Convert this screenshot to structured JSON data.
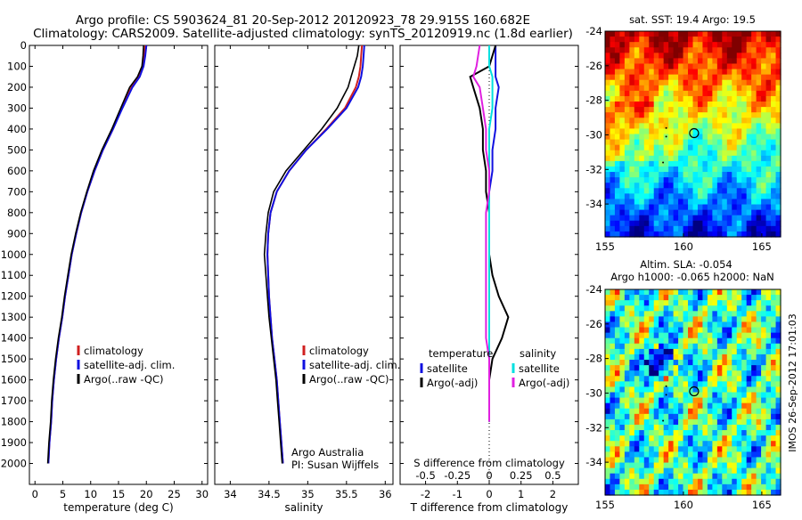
{
  "header": {
    "line1": "Argo profile: CS 5903624_81 20-Sep-2012 20120923_78 29.915S 160.682E",
    "line2": "Climatology: CARS2009. Satellite-adjusted climatology: synTS_20120919.nc (1.8d earlier)"
  },
  "side_stamp": "IMOS 26-Sep-2012 17:01:03",
  "colors": {
    "climatology": "#d02020",
    "satellite": "#1010e0",
    "argo": "#000000",
    "salinity_satellite": "#00e0e0",
    "salinity_argo": "#e020e0"
  },
  "chart_data": [
    {
      "type": "line",
      "xlabel": "temperature (deg C)",
      "ylabel": "",
      "xlim": [
        -1,
        31
      ],
      "xticks": [
        0,
        5,
        10,
        15,
        20,
        25,
        30
      ],
      "ylim": [
        0,
        2100
      ],
      "yticks": [
        0,
        100,
        200,
        300,
        400,
        500,
        600,
        700,
        800,
        900,
        1000,
        1100,
        1200,
        1300,
        1400,
        1500,
        1600,
        1700,
        1800,
        1900,
        2000
      ],
      "legend": [
        "climatology",
        "satellite-adj. clim.",
        "Argo(..raw -QC)"
      ],
      "series": [
        {
          "name": "climatology",
          "color": "#d02020",
          "x": [
            19.8,
            19.6,
            19.3,
            18.6,
            17.3,
            15.6,
            14.0,
            12.2,
            10.7,
            9.4,
            8.3,
            7.4,
            6.6,
            6.0,
            5.4,
            4.9,
            4.3,
            3.8,
            3.4,
            3.1,
            2.9,
            2.6,
            2.4
          ],
          "y": [
            0,
            50,
            100,
            150,
            200,
            300,
            400,
            500,
            600,
            700,
            800,
            900,
            1000,
            1100,
            1200,
            1300,
            1400,
            1500,
            1600,
            1700,
            1800,
            1900,
            2000
          ]
        },
        {
          "name": "satellite-adj. clim.",
          "color": "#1010e0",
          "x": [
            20.0,
            19.8,
            19.5,
            18.8,
            17.5,
            15.7,
            14.0,
            12.2,
            10.7,
            9.4,
            8.3,
            7.4,
            6.6,
            6.0,
            5.4,
            4.9,
            4.3,
            3.8,
            3.4,
            3.1,
            2.9,
            2.6,
            2.4
          ],
          "y": [
            0,
            50,
            100,
            150,
            200,
            300,
            400,
            500,
            600,
            700,
            800,
            900,
            1000,
            1100,
            1200,
            1300,
            1400,
            1500,
            1600,
            1700,
            1800,
            1900,
            2000
          ]
        },
        {
          "name": "Argo(..raw -QC)",
          "color": "#000000",
          "x": [
            19.5,
            19.4,
            19.2,
            18.4,
            17.0,
            15.4,
            13.8,
            12.0,
            10.5,
            9.3,
            8.2,
            7.3,
            6.5,
            5.9,
            5.3,
            4.8,
            4.2,
            3.7,
            3.3,
            3.0,
            2.8,
            2.5,
            2.3
          ],
          "y": [
            0,
            50,
            100,
            150,
            200,
            300,
            400,
            500,
            600,
            700,
            800,
            900,
            1000,
            1100,
            1200,
            1300,
            1400,
            1500,
            1600,
            1700,
            1800,
            1900,
            2000
          ]
        }
      ]
    },
    {
      "type": "line",
      "xlabel": "salinity",
      "ylabel": "",
      "xlim": [
        33.8,
        36.1
      ],
      "xticks": [
        34,
        34.5,
        35,
        35.5,
        36
      ],
      "ylim": [
        0,
        2100
      ],
      "legend": [
        "climatology",
        "satellite-adj. clim.",
        "Argo(..raw -QC)"
      ],
      "annotation": [
        "Argo Australia",
        "PI: Susan Wijffels"
      ],
      "series": [
        {
          "name": "climatology",
          "color": "#d02020",
          "x": [
            35.7,
            35.69,
            35.68,
            35.66,
            35.62,
            35.48,
            35.24,
            34.98,
            34.76,
            34.6,
            34.52,
            34.49,
            34.48,
            34.49,
            34.5,
            34.52,
            34.54,
            34.57,
            34.6,
            34.62,
            34.64,
            34.66,
            34.68
          ],
          "y": [
            0,
            50,
            100,
            150,
            200,
            300,
            400,
            500,
            600,
            700,
            800,
            900,
            1000,
            1100,
            1200,
            1300,
            1400,
            1500,
            1600,
            1700,
            1800,
            1900,
            2000
          ]
        },
        {
          "name": "satellite-adj. clim.",
          "color": "#1010e0",
          "x": [
            35.73,
            35.72,
            35.71,
            35.69,
            35.65,
            35.5,
            35.25,
            34.98,
            34.76,
            34.6,
            34.52,
            34.49,
            34.48,
            34.49,
            34.5,
            34.52,
            34.54,
            34.57,
            34.6,
            34.62,
            34.64,
            34.66,
            34.68
          ],
          "y": [
            0,
            50,
            100,
            150,
            200,
            300,
            400,
            500,
            600,
            700,
            800,
            900,
            1000,
            1100,
            1200,
            1300,
            1400,
            1500,
            1600,
            1700,
            1800,
            1900,
            2000
          ]
        },
        {
          "name": "Argo(..raw -QC)",
          "color": "#000000",
          "x": [
            35.66,
            35.64,
            35.6,
            35.56,
            35.52,
            35.38,
            35.18,
            34.95,
            34.72,
            34.56,
            34.49,
            34.46,
            34.44,
            34.46,
            34.48,
            34.5,
            34.53,
            34.56,
            34.59,
            34.61,
            34.63,
            34.65,
            34.67
          ],
          "y": [
            0,
            50,
            100,
            150,
            200,
            300,
            400,
            500,
            600,
            700,
            800,
            900,
            1000,
            1100,
            1200,
            1300,
            1400,
            1500,
            1600,
            1700,
            1800,
            1900,
            2000
          ]
        }
      ]
    },
    {
      "type": "line",
      "xlabel": "T difference from climatology",
      "top_label": "S difference from climatology",
      "top_ticks": [
        "-0.5",
        "-0.25",
        "0",
        "0.25",
        "0.5"
      ],
      "top_tick_values": [
        -2,
        -1,
        0,
        1,
        2
      ],
      "xlim": [
        -2.8,
        2.8
      ],
      "xticks": [
        -2,
        -1,
        0,
        1,
        2
      ],
      "ylim": [
        0,
        2100
      ],
      "legend_headers": [
        "temperature",
        "salinity"
      ],
      "legend": [
        "satellite",
        "Argo(-adj)",
        "satellite",
        "Argo(-adj)"
      ],
      "series": [
        {
          "name": "satellite",
          "color": "#1010e0",
          "x": [
            0.2,
            0.2,
            0.2,
            0.3,
            0.2,
            0.2,
            0.1,
            0.1,
            0.0,
            0.0,
            0.0,
            0.0,
            0.0,
            0.0,
            0.0,
            0.0,
            0.0,
            0.0,
            0.0,
            0.0
          ],
          "y": [
            0,
            100,
            150,
            200,
            300,
            400,
            500,
            600,
            700,
            800,
            900,
            1000,
            1100,
            1200,
            1300,
            1400,
            1500,
            1600,
            1700,
            1800
          ]
        },
        {
          "name": "Argo(-adj)",
          "color": "#000000",
          "x": [
            0.2,
            0.0,
            -0.6,
            -0.5,
            -0.3,
            -0.2,
            -0.2,
            -0.1,
            -0.1,
            0.0,
            0.0,
            0.0,
            0.1,
            0.3,
            0.6,
            0.4,
            0.1,
            0.0,
            0.0,
            0.0
          ],
          "y": [
            0,
            100,
            150,
            200,
            300,
            400,
            500,
            600,
            700,
            800,
            900,
            1000,
            1100,
            1200,
            1300,
            1400,
            1500,
            1600,
            1700,
            1800
          ]
        },
        {
          "name": "satellite",
          "color": "#00e0e0",
          "x": [
            0.0,
            0.0,
            0.1,
            0.1,
            0.1,
            0.0,
            0.0,
            0.0,
            0.0,
            0.0,
            0.0,
            0.0,
            0.0,
            0.0,
            0.0,
            0.0,
            0.0,
            0.0,
            0.0,
            0.0
          ],
          "y": [
            0,
            100,
            150,
            200,
            300,
            400,
            500,
            600,
            700,
            800,
            900,
            1000,
            1100,
            1200,
            1300,
            1400,
            1500,
            1600,
            1700,
            1800
          ]
        },
        {
          "name": "Argo(-adj)",
          "color": "#e020e0",
          "x": [
            -0.3,
            -0.4,
            -0.5,
            -0.3,
            -0.2,
            -0.1,
            -0.1,
            0.0,
            0.0,
            -0.1,
            -0.1,
            -0.1,
            -0.1,
            -0.1,
            -0.1,
            -0.1,
            0.0,
            0.0,
            0.0,
            0.0
          ],
          "y": [
            0,
            100,
            150,
            200,
            300,
            400,
            500,
            600,
            700,
            800,
            900,
            1000,
            1100,
            1200,
            1300,
            1400,
            1500,
            1600,
            1700,
            1800
          ]
        }
      ]
    },
    {
      "type": "heatmap",
      "title": "sat. SST: 19.4 Argo: 19.5",
      "xlim": [
        155,
        166.2
      ],
      "ylim": [
        -35.9,
        -24
      ],
      "xticks": [
        155,
        160,
        165
      ],
      "yticks": [
        -24,
        -26,
        -28,
        -30,
        -32,
        -34
      ],
      "marker": {
        "lon": 160.68,
        "lat": -29.9
      }
    },
    {
      "type": "heatmap",
      "title": [
        "Altim. SLA: -0.054",
        "Argo h1000: -0.065 h2000: NaN"
      ],
      "xlim": [
        155,
        166.2
      ],
      "ylim": [
        -35.9,
        -24
      ],
      "xticks": [
        155,
        160,
        165
      ],
      "yticks": [
        -24,
        -26,
        -28,
        -30,
        -32,
        -34
      ],
      "marker": {
        "lon": 160.68,
        "lat": -29.9
      }
    }
  ]
}
